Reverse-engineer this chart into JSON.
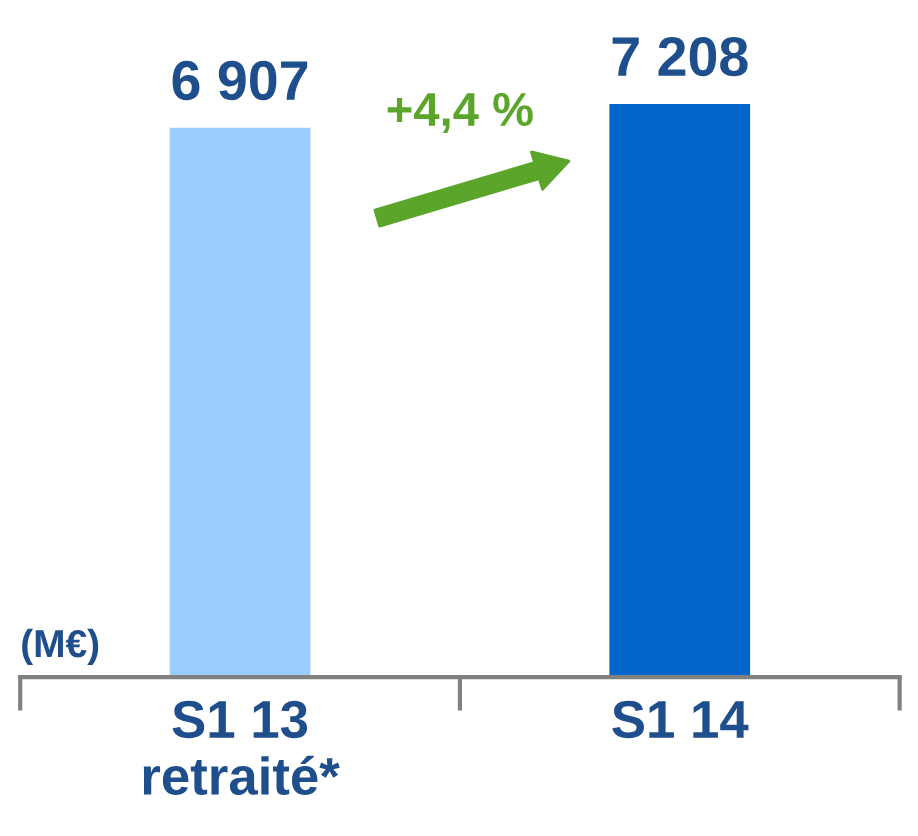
{
  "chart_data": {
    "type": "bar",
    "categories": [
      "S1 13\nretraité*",
      "S1 14"
    ],
    "values": [
      6907,
      7208
    ],
    "colors": [
      "#99ccff",
      "#0066cc"
    ],
    "value_labels": [
      "6 907",
      "7 208"
    ],
    "ylabel": "(M€)",
    "annotations": [
      "+4,4 %"
    ],
    "grid": false,
    "legend": false
  }
}
